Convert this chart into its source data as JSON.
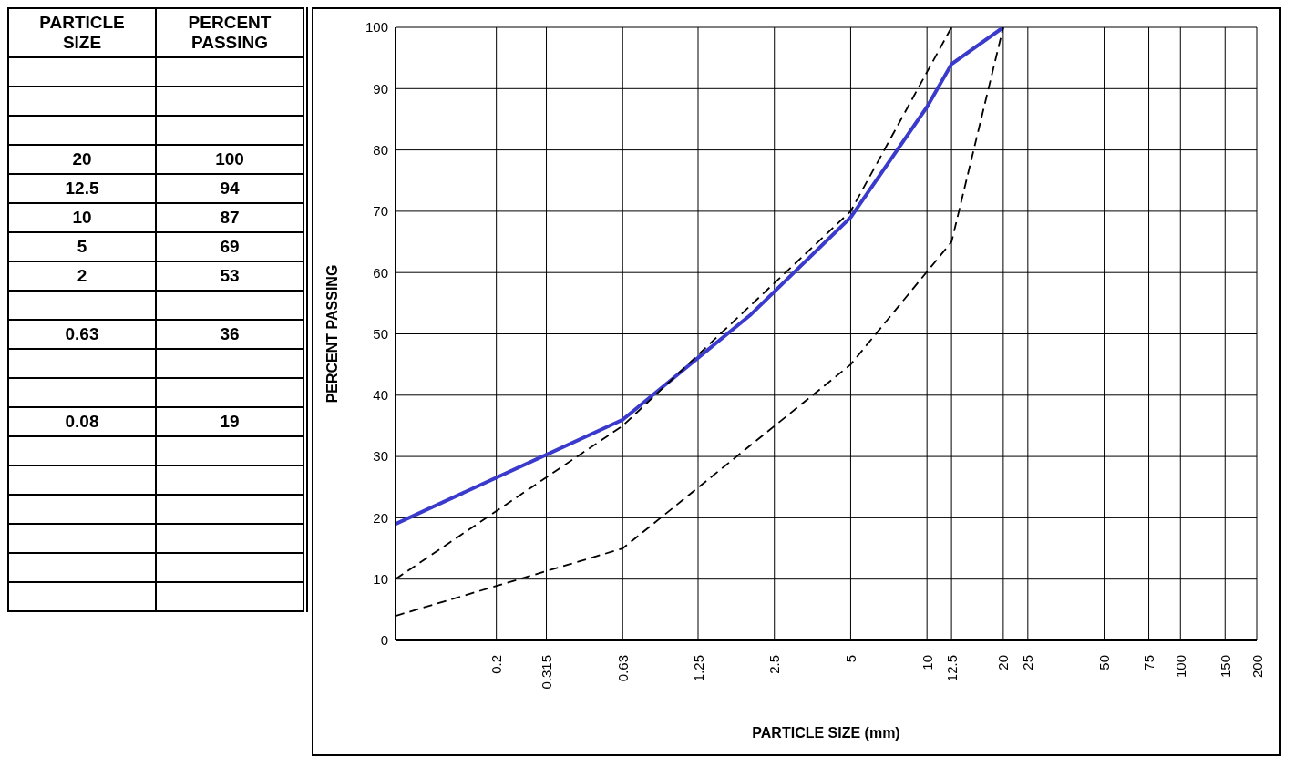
{
  "chart_data": [
    {
      "type": "other",
      "annotations": [
        "PARTICLE SIZE",
        "PERCENT PASSING",
        "20",
        "100",
        "12.5",
        "94",
        "10",
        "87",
        "5",
        "69",
        "2",
        "53",
        "0.63",
        "36",
        "0.08",
        "19"
      ]
    },
    {
      "type": "line",
      "xlabel": "PARTICLE SIZE (mm)",
      "ylabel": "PERCENT PASSING",
      "log": "x",
      "xlim": [
        0.08,
        200
      ],
      "xticks": [
        0.2,
        0.315,
        0.63,
        1.25,
        2.5,
        5,
        10,
        12.5,
        20,
        25,
        50,
        75,
        100,
        150,
        200
      ],
      "ylim": [
        0,
        100
      ],
      "yticks": [
        0,
        10,
        20,
        30,
        40,
        50,
        60,
        70,
        80,
        90,
        100
      ],
      "grid": true,
      "marker": "none",
      "series": [
        {
          "color": "#3a3acc",
          "line_style": "solid",
          "x": [
            20,
            12.5,
            10,
            5,
            2,
            0.63,
            0.08
          ],
          "values": [
            100,
            94,
            87,
            69,
            53,
            36,
            19
          ]
        },
        {
          "color": "#000000",
          "line_style": "dashed",
          "x": [
            0.08,
            0.63,
            5,
            12.5
          ],
          "values": [
            10,
            35,
            70,
            100
          ]
        },
        {
          "color": "#000000",
          "line_style": "dashed",
          "x": [
            0.08,
            0.63,
            5,
            12.5,
            20
          ],
          "values": [
            4,
            15,
            45,
            65,
            100
          ]
        }
      ]
    }
  ]
}
